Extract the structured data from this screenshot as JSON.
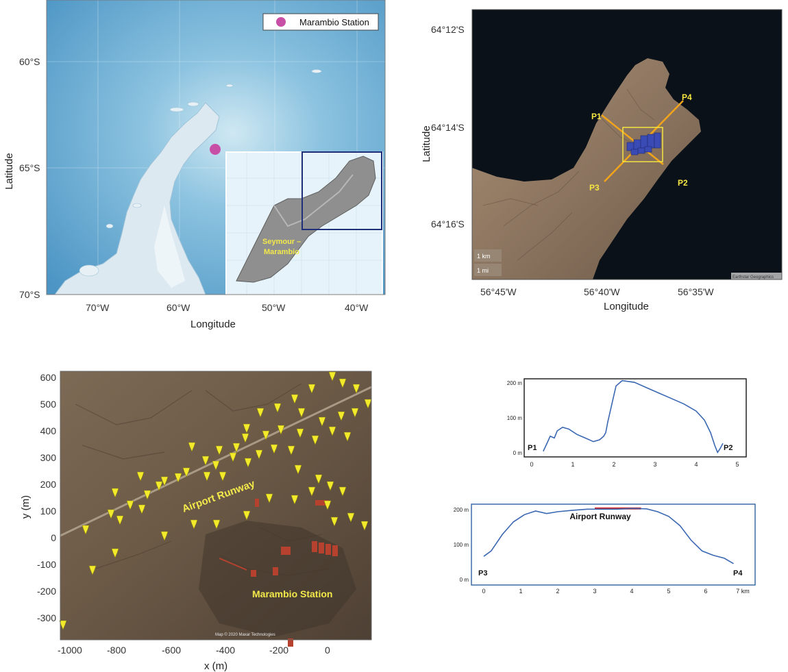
{
  "map1": {
    "legend": "Marambio Station",
    "x_ticks": [
      "70°W",
      "60°W",
      "50°W",
      "40°W"
    ],
    "y_ticks": [
      "60°S",
      "65°S",
      "70°S"
    ],
    "xlabel": "Longitude",
    "ylabel": "Latitude",
    "inset_label": "Seymour –\nMarambio",
    "colors": {
      "ocean": "#5aa6cf",
      "land": "#d9e6ee",
      "marker": "#c84fa6",
      "box": "#1f2f7a"
    }
  },
  "map2": {
    "y_ticks": [
      "64°12'S",
      "64°14'S",
      "64°16'S"
    ],
    "x_ticks": [
      "56°45'W",
      "56°40'W",
      "56°35'W"
    ],
    "xlabel": "Longitude",
    "ylabel": "Latitude",
    "points": [
      "P1",
      "P2",
      "P3",
      "P4"
    ],
    "scale": [
      "1 km",
      "1 mi"
    ],
    "attribution": "Earthstar Geographics",
    "colors": {
      "line": "#f2a51a",
      "label": "#f5e642",
      "water": "#0b1118",
      "rect": "#3a4bb5"
    }
  },
  "map3": {
    "x_ticks": [
      "-1000",
      "-800",
      "-600",
      "-400",
      "-200",
      "0"
    ],
    "y_ticks": [
      "600",
      "500",
      "400",
      "300",
      "200",
      "100",
      "0",
      "-100",
      "-200",
      "-300"
    ],
    "xlabel": "x (m)",
    "ylabel": "y (m)",
    "runway_label": "Airport Runway",
    "station_label": "Marambio Station",
    "credit": "Map © 2020 Maxar Technologies",
    "colors": {
      "pin": "#f2ea2a",
      "label": "#f3e94a",
      "ground": "#6e5c48"
    }
  },
  "profile1": {
    "y_ticks": [
      "200 m",
      "100 m",
      "0 m"
    ],
    "x_ticks": [
      "0",
      "1",
      "2",
      "3",
      "4",
      "5"
    ],
    "start_label": "P1",
    "end_label": "P2",
    "chart_data": {
      "type": "line",
      "xlim": [
        0,
        5
      ],
      "ylim": [
        0,
        210
      ],
      "x": [
        0.28,
        0.35,
        0.45,
        0.55,
        0.62,
        0.75,
        0.9,
        1.1,
        1.3,
        1.5,
        1.65,
        1.75,
        1.8,
        1.85,
        1.95,
        2.05,
        2.2,
        2.5,
        2.8,
        3.1,
        3.4,
        3.7,
        4.0,
        4.2,
        4.35,
        4.45,
        4.52,
        4.58,
        4.65
      ],
      "y": [
        8,
        25,
        50,
        45,
        65,
        75,
        70,
        55,
        45,
        35,
        40,
        50,
        60,
        90,
        140,
        190,
        205,
        200,
        185,
        170,
        155,
        140,
        120,
        95,
        60,
        25,
        5,
        15,
        30
      ]
    }
  },
  "profile2": {
    "y_ticks": [
      "200 m",
      "100 m",
      "0 m"
    ],
    "x_ticks": [
      "0",
      "1",
      "2",
      "3",
      "4",
      "5",
      "6",
      "7 km"
    ],
    "start_label": "P3",
    "end_label": "P4",
    "runway_label": "Airport Runway",
    "chart_data": {
      "type": "line",
      "xlim": [
        0,
        7
      ],
      "ylim": [
        0,
        215
      ],
      "runway": [
        3.0,
        4.25
      ],
      "x": [
        0.0,
        0.2,
        0.5,
        0.8,
        1.1,
        1.4,
        1.7,
        2.0,
        2.4,
        2.8,
        3.2,
        3.6,
        4.0,
        4.4,
        4.7,
        5.0,
        5.3,
        5.6,
        5.9,
        6.2,
        6.5,
        6.75
      ],
      "y": [
        75,
        90,
        135,
        170,
        190,
        200,
        193,
        198,
        202,
        205,
        205,
        205,
        207,
        206,
        198,
        185,
        160,
        120,
        90,
        78,
        70,
        55
      ]
    }
  }
}
